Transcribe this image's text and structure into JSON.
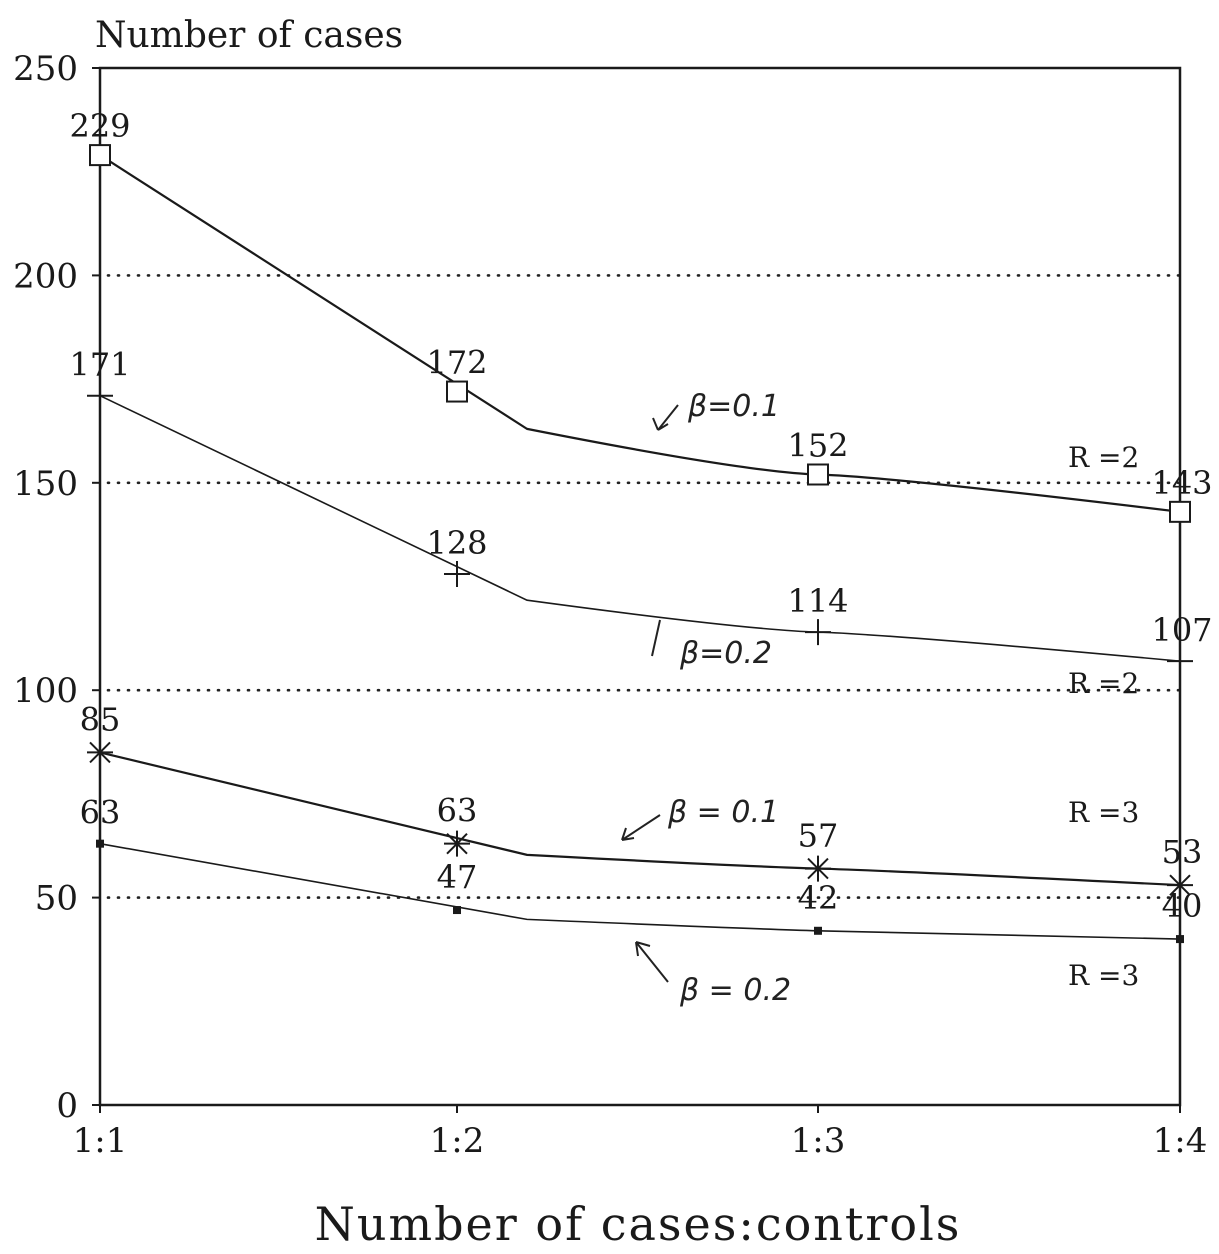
{
  "chart_data": {
    "type": "line",
    "ylabel": "Number of cases",
    "xlabel": "Number of cases:controls",
    "categories": [
      "1:1",
      "1:2",
      "1:3",
      "1:4"
    ],
    "ylim": [
      0,
      250
    ],
    "yticks": [
      0,
      50,
      100,
      150,
      200,
      250
    ],
    "grid": "dotted horizontal lines at 50, 100, 150, 200",
    "series": [
      {
        "values": [
          229,
          172,
          152,
          143
        ],
        "marker": "square",
        "labels": [
          "229",
          "172",
          "152",
          "143"
        ],
        "beta_note": "β=0.1",
        "r_label": "R =2"
      },
      {
        "values": [
          171,
          128,
          114,
          107
        ],
        "marker": "plus",
        "labels": [
          "171",
          "128",
          "114",
          "107"
        ],
        "beta_note": "β=0.2",
        "r_label": "R =2"
      },
      {
        "values": [
          85,
          63,
          57,
          53
        ],
        "marker": "star",
        "labels": [
          "85",
          "63",
          "57",
          "53"
        ],
        "beta_note": "β = 0.1",
        "r_label": "R =3"
      },
      {
        "values": [
          63,
          47,
          42,
          40
        ],
        "marker": "dot",
        "labels": [
          "63",
          "47",
          "42",
          "40"
        ],
        "beta_note": "β = 0.2",
        "r_label": "R =3"
      }
    ]
  }
}
